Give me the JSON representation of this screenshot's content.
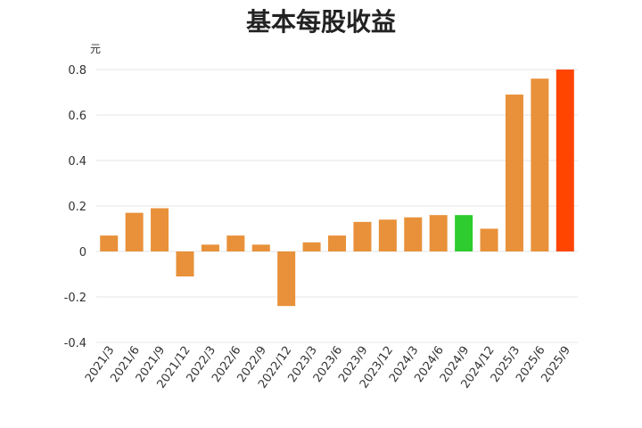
{
  "chart_data": {
    "type": "bar",
    "title": "基本每股收益",
    "unit": "元",
    "categories": [
      "2021/3",
      "2021/6",
      "2021/9",
      "2021/12",
      "2022/3",
      "2022/6",
      "2022/9",
      "2022/12",
      "2023/3",
      "2023/6",
      "2023/9",
      "2023/12",
      "2024/3",
      "2024/6",
      "2024/9",
      "2024/12",
      "2025/3",
      "2025/6",
      "2025/9"
    ],
    "values": [
      0.07,
      0.17,
      0.19,
      -0.11,
      0.03,
      0.07,
      0.03,
      -0.24,
      0.04,
      0.07,
      0.13,
      0.14,
      0.15,
      0.16,
      0.16,
      0.1,
      0.69,
      0.76,
      0.8
    ],
    "ylim": [
      -0.4,
      0.8
    ],
    "yticks": [
      0.8,
      0.6,
      0.4,
      0.2,
      0,
      -0.2,
      -0.4
    ],
    "ytick_labels": [
      "0.8",
      "0.6",
      "0.4",
      "0.2",
      "0",
      "-0.2",
      "-0.4"
    ],
    "grid": true,
    "colors": {
      "default": "#e8913a",
      "highlight_green": "#2ecc2e",
      "highlight_red": "#ff4500",
      "grid": "#e6e6e6",
      "text": "#333333"
    },
    "bar_colors": [
      "default",
      "default",
      "default",
      "default",
      "default",
      "default",
      "default",
      "default",
      "default",
      "default",
      "default",
      "default",
      "default",
      "default",
      "highlight_green",
      "default",
      "default",
      "default",
      "highlight_red"
    ]
  }
}
